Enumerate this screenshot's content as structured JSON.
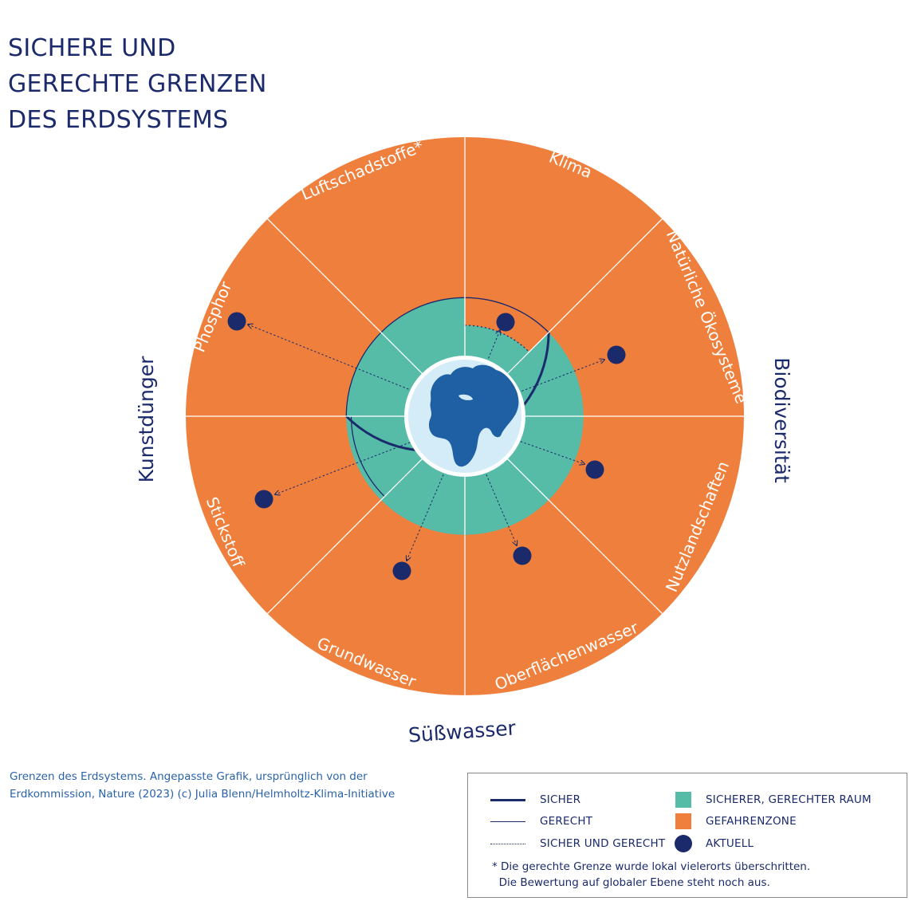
{
  "title": {
    "line1": "SICHERE UND",
    "line2": "GERECHTE GRENZEN",
    "line3": "DES ERDSYSTEMS"
  },
  "segments": [
    {
      "id": "klima",
      "label": "Klima"
    },
    {
      "id": "oekosysteme",
      "label": "Natürliche Ökosysteme"
    },
    {
      "id": "nutzlandschaften",
      "label": "Nutzlandschaften"
    },
    {
      "id": "oberflaechenwasser",
      "label": "Oberflächenwasser"
    },
    {
      "id": "grundwasser",
      "label": "Grundwasser"
    },
    {
      "id": "stickstoff",
      "label": "Stickstoff"
    },
    {
      "id": "phosphor",
      "label": "Phosphor"
    },
    {
      "id": "luftschadstoffe",
      "label": "Luftschadstoffe*"
    }
  ],
  "groups": {
    "biodiversitaet": "Biodiversität",
    "suesswasser": "Süßwasser",
    "kunstduenger": "Kunstdünger"
  },
  "source": {
    "line1": "Grenzen des Erdsystems. Angepasste Grafik, ursprünglich von der",
    "line2": "Erdkommission, Nature (2023) (c) Julia Blenn/Helmholtz-Klima-Initiative"
  },
  "legend": {
    "sicher": "SICHER",
    "gerecht": "GERECHT",
    "sicher_und_gerecht": "SICHER UND GERECHT",
    "raum": "SICHERER, GERECHTER RAUM",
    "gefahrenzone": "GEFAHRENZONE",
    "aktuell": "AKTUELL",
    "note_line1": "* Die gerechte Grenze wurde lokal vielerorts überschritten.",
    "note_line2": "  Die Bewertung auf globaler Ebene steht noch aus."
  },
  "colors": {
    "navy": "#1b2a6b",
    "orange": "#ef7f3c",
    "teal": "#56bca8",
    "earth_ocean": "#d4ebf8",
    "earth_land": "#1f5fa3"
  }
}
